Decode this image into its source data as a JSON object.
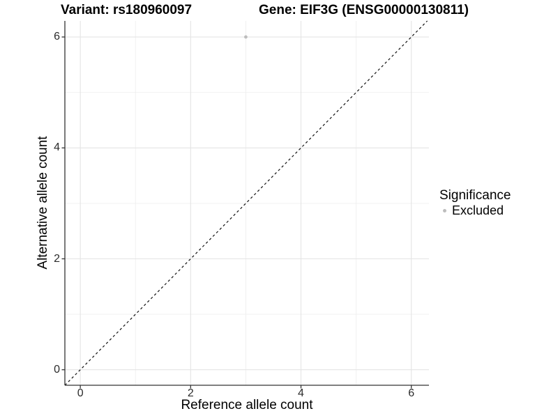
{
  "chart_data": {
    "type": "scatter",
    "titles": [
      "Variant: rs180960097",
      "Gene: EIF3G (ENSG00000130811)"
    ],
    "xlabel": "Reference allele count",
    "ylabel": "Alternative allele count",
    "xlim": [
      -0.28,
      6.32
    ],
    "ylim": [
      -0.28,
      6.29
    ],
    "x_ticks": [
      0,
      2,
      4,
      6
    ],
    "y_ticks": [
      0,
      2,
      4,
      6
    ],
    "x_minor_ticks": [
      1,
      3,
      5
    ],
    "y_minor_ticks": [
      1,
      3,
      5
    ],
    "grid": "major+minor",
    "series": [
      {
        "name": "Excluded",
        "color": "#bdbdbd",
        "points": [
          {
            "x": 3,
            "y": 6
          }
        ]
      }
    ],
    "reference_line": {
      "type": "identity",
      "slope": 1,
      "intercept": 0,
      "style": "dashed",
      "color": "#111111"
    },
    "legend": {
      "title": "Significance",
      "position": "right",
      "items": [
        {
          "label": "Excluded",
          "color": "#bdbdbd",
          "marker": "circle"
        }
      ]
    }
  },
  "style": {
    "background": "#ffffff",
    "grid_major": "#e4e4e4",
    "grid_minor": "#efefef",
    "axis_line": "#333333",
    "tick_label_color": "#2b2b2b",
    "text_color": "#000000"
  }
}
